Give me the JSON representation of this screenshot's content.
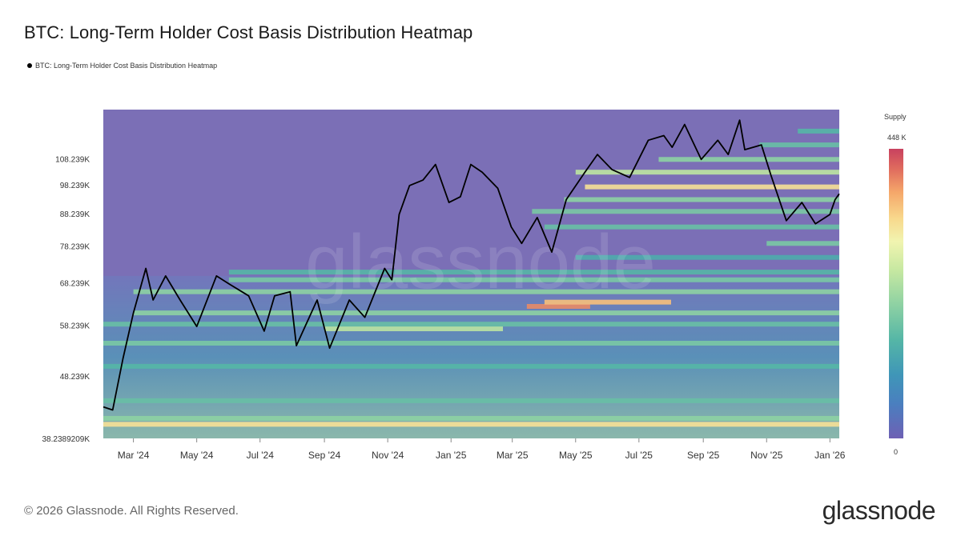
{
  "title": "BTC: Long-Term Holder Cost Basis Distribution Heatmap",
  "legend": {
    "label": "BTC: Long-Term Holder Cost Basis Distribution Heatmap"
  },
  "footer": {
    "copyright": "© 2026 Glassnode. All Rights Reserved.",
    "brand": "glassnode"
  },
  "watermark": "glassnode",
  "colorbar": {
    "title": "Supply",
    "max_label": "448 K",
    "min_label": "0",
    "max_value": 448000,
    "min_value": 0
  },
  "colors": {
    "background_low": "#7b6fb6",
    "price_line": "#000000",
    "high": "#c8415f"
  },
  "chart_data": {
    "type": "heatmap",
    "title": "BTC: Long-Term Holder Cost Basis Distribution Heatmap",
    "x_ticks": [
      "Mar '24",
      "May '24",
      "Jul '24",
      "Sep '24",
      "Nov '24",
      "Jan '25",
      "Mar '25",
      "May '25",
      "Jul '25",
      "Sep '25",
      "Nov '25",
      "Jan '26"
    ],
    "x_range": [
      "2024-02-01",
      "2026-01-10"
    ],
    "y_ticks": [
      {
        "label": "108.239K",
        "value": 108239
      },
      {
        "label": "98.239K",
        "value": 98239
      },
      {
        "label": "88.239K",
        "value": 88239
      },
      {
        "label": "78.239K",
        "value": 78239
      },
      {
        "label": "68.239K",
        "value": 68239
      },
      {
        "label": "58.239K",
        "value": 58239
      },
      {
        "label": "48.239K",
        "value": 48239
      },
      {
        "label": "38.2389209K",
        "value": 38239
      }
    ],
    "y_scale": "log",
    "ylim": [
      38239,
      130000
    ],
    "price_series": {
      "name": "BTC Price",
      "points": [
        [
          "2024-02-01",
          43000
        ],
        [
          "2024-02-10",
          42500
        ],
        [
          "2024-02-20",
          51500
        ],
        [
          "2024-03-01",
          61000
        ],
        [
          "2024-03-13",
          72000
        ],
        [
          "2024-03-20",
          64000
        ],
        [
          "2024-04-01",
          70000
        ],
        [
          "2024-04-15",
          64000
        ],
        [
          "2024-05-01",
          58000
        ],
        [
          "2024-05-20",
          70000
        ],
        [
          "2024-06-01",
          68000
        ],
        [
          "2024-06-20",
          65000
        ],
        [
          "2024-07-05",
          57000
        ],
        [
          "2024-07-15",
          65000
        ],
        [
          "2024-07-30",
          66000
        ],
        [
          "2024-08-05",
          54000
        ],
        [
          "2024-08-25",
          64000
        ],
        [
          "2024-09-06",
          53500
        ],
        [
          "2024-09-25",
          64000
        ],
        [
          "2024-10-10",
          60000
        ],
        [
          "2024-10-29",
          72000
        ],
        [
          "2024-11-05",
          69000
        ],
        [
          "2024-11-12",
          88000
        ],
        [
          "2024-11-22",
          98000
        ],
        [
          "2024-12-05",
          100000
        ],
        [
          "2024-12-17",
          106000
        ],
        [
          "2024-12-30",
          92000
        ],
        [
          "2025-01-10",
          94000
        ],
        [
          "2025-01-20",
          106000
        ],
        [
          "2025-01-31",
          103000
        ],
        [
          "2025-02-15",
          97000
        ],
        [
          "2025-02-28",
          84000
        ],
        [
          "2025-03-10",
          79000
        ],
        [
          "2025-03-25",
          87000
        ],
        [
          "2025-04-08",
          76500
        ],
        [
          "2025-04-22",
          93000
        ],
        [
          "2025-05-10",
          103000
        ],
        [
          "2025-05-22",
          110000
        ],
        [
          "2025-06-05",
          104000
        ],
        [
          "2025-06-22",
          101000
        ],
        [
          "2025-07-10",
          116000
        ],
        [
          "2025-07-25",
          118000
        ],
        [
          "2025-08-02",
          113000
        ],
        [
          "2025-08-14",
          123000
        ],
        [
          "2025-08-30",
          108000
        ],
        [
          "2025-09-15",
          116000
        ],
        [
          "2025-09-25",
          110000
        ],
        [
          "2025-10-06",
          125000
        ],
        [
          "2025-10-11",
          112000
        ],
        [
          "2025-10-27",
          114000
        ],
        [
          "2025-11-05",
          102000
        ],
        [
          "2025-11-20",
          86000
        ],
        [
          "2025-12-05",
          92000
        ],
        [
          "2025-12-18",
          85000
        ],
        [
          "2026-01-01",
          88000
        ],
        [
          "2026-01-06",
          93000
        ],
        [
          "2026-01-10",
          95000
        ]
      ]
    },
    "density_bands": [
      {
        "price": 40300,
        "intensity": 0.85,
        "start": "2024-02-01",
        "end": "2026-01-10"
      },
      {
        "price": 41200,
        "intensity": 0.6,
        "start": "2024-02-01",
        "end": "2026-01-10"
      },
      {
        "price": 44000,
        "intensity": 0.5,
        "start": "2024-02-01",
        "end": "2026-01-10"
      },
      {
        "price": 50000,
        "intensity": 0.45,
        "start": "2024-02-01",
        "end": "2026-01-10"
      },
      {
        "price": 54500,
        "intensity": 0.55,
        "start": "2024-02-01",
        "end": "2026-01-10"
      },
      {
        "price": 57500,
        "intensity": 0.7,
        "start": "2024-09-01",
        "end": "2025-02-20"
      },
      {
        "price": 58500,
        "intensity": 0.5,
        "start": "2024-02-01",
        "end": "2026-01-10"
      },
      {
        "price": 61000,
        "intensity": 0.6,
        "start": "2024-03-01",
        "end": "2026-01-10"
      },
      {
        "price": 62500,
        "intensity": 0.95,
        "start": "2025-03-15",
        "end": "2025-05-15"
      },
      {
        "price": 63500,
        "intensity": 0.9,
        "start": "2025-04-01",
        "end": "2025-08-01"
      },
      {
        "price": 66000,
        "intensity": 0.6,
        "start": "2024-03-01",
        "end": "2026-01-10"
      },
      {
        "price": 69000,
        "intensity": 0.55,
        "start": "2024-06-01",
        "end": "2026-01-10"
      },
      {
        "price": 71000,
        "intensity": 0.45,
        "start": "2024-06-01",
        "end": "2026-01-10"
      },
      {
        "price": 75000,
        "intensity": 0.4,
        "start": "2025-05-01",
        "end": "2026-01-10"
      },
      {
        "price": 79000,
        "intensity": 0.55,
        "start": "2025-11-01",
        "end": "2026-01-10"
      },
      {
        "price": 84000,
        "intensity": 0.5,
        "start": "2025-04-01",
        "end": "2026-01-10"
      },
      {
        "price": 89000,
        "intensity": 0.55,
        "start": "2025-03-20",
        "end": "2026-01-10"
      },
      {
        "price": 93000,
        "intensity": 0.6,
        "start": "2025-04-20",
        "end": "2026-01-10"
      },
      {
        "price": 97500,
        "intensity": 0.85,
        "start": "2025-05-10",
        "end": "2026-01-10"
      },
      {
        "price": 103000,
        "intensity": 0.7,
        "start": "2025-05-01",
        "end": "2026-01-10"
      },
      {
        "price": 108000,
        "intensity": 0.6,
        "start": "2025-07-20",
        "end": "2026-01-10"
      },
      {
        "price": 114000,
        "intensity": 0.5,
        "start": "2025-10-25",
        "end": "2026-01-10"
      },
      {
        "price": 120000,
        "intensity": 0.45,
        "start": "2025-12-01",
        "end": "2026-01-10"
      }
    ]
  }
}
